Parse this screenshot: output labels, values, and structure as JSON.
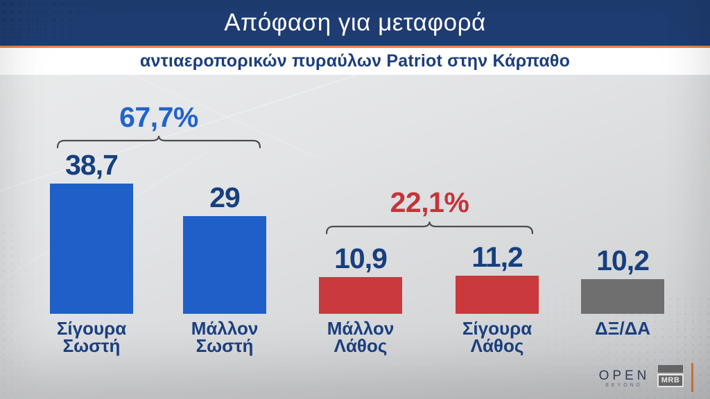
{
  "header": {
    "title": "Απόφαση για μεταφορά",
    "subtitle": "αντιαεροπορικών πυραύλων Patriot στην Κάρπαθο"
  },
  "chart_data": {
    "type": "bar",
    "title": "Απόφαση για μεταφορά αντιαεροπορικών πυραύλων Patriot στην Κάρπαθο",
    "unit": "%",
    "categories": [
      "Σίγουρα Σωστή",
      "Μάλλον Σωστή",
      "Μάλλον Λάθος",
      "Σίγουρα Λάθος",
      "ΔΞ/ΔΑ"
    ],
    "values": [
      38.7,
      29,
      10.9,
      11.2,
      10.2
    ],
    "value_labels": [
      "38,7",
      "29",
      "10,9",
      "11,2",
      "10,2"
    ],
    "bar_colors": [
      "#1e60c8",
      "#1e60c8",
      "#ca393b",
      "#ca393b",
      "#6f6f6f"
    ],
    "groups": [
      {
        "sum_label": "67,7%",
        "sum": 67.7,
        "members": [
          0,
          1
        ],
        "color": "#2263cb"
      },
      {
        "sum_label": "22,1%",
        "sum": 22.1,
        "members": [
          2,
          3
        ],
        "color": "#c5343a"
      }
    ],
    "ylim": [
      0,
      40
    ],
    "grid": false,
    "legend": "none",
    "xlabel": "",
    "ylabel": ""
  },
  "colors": {
    "header_bg": "#1f3d72",
    "accent_orange": "#e5803d",
    "value_text": "#173f7f",
    "brace_stroke": "#4d4d4d",
    "background": "#e0e1e3"
  },
  "footer": {
    "open_logo": "OPEN",
    "open_sub": "BEYOND",
    "mrb_logo": "MRB"
  }
}
